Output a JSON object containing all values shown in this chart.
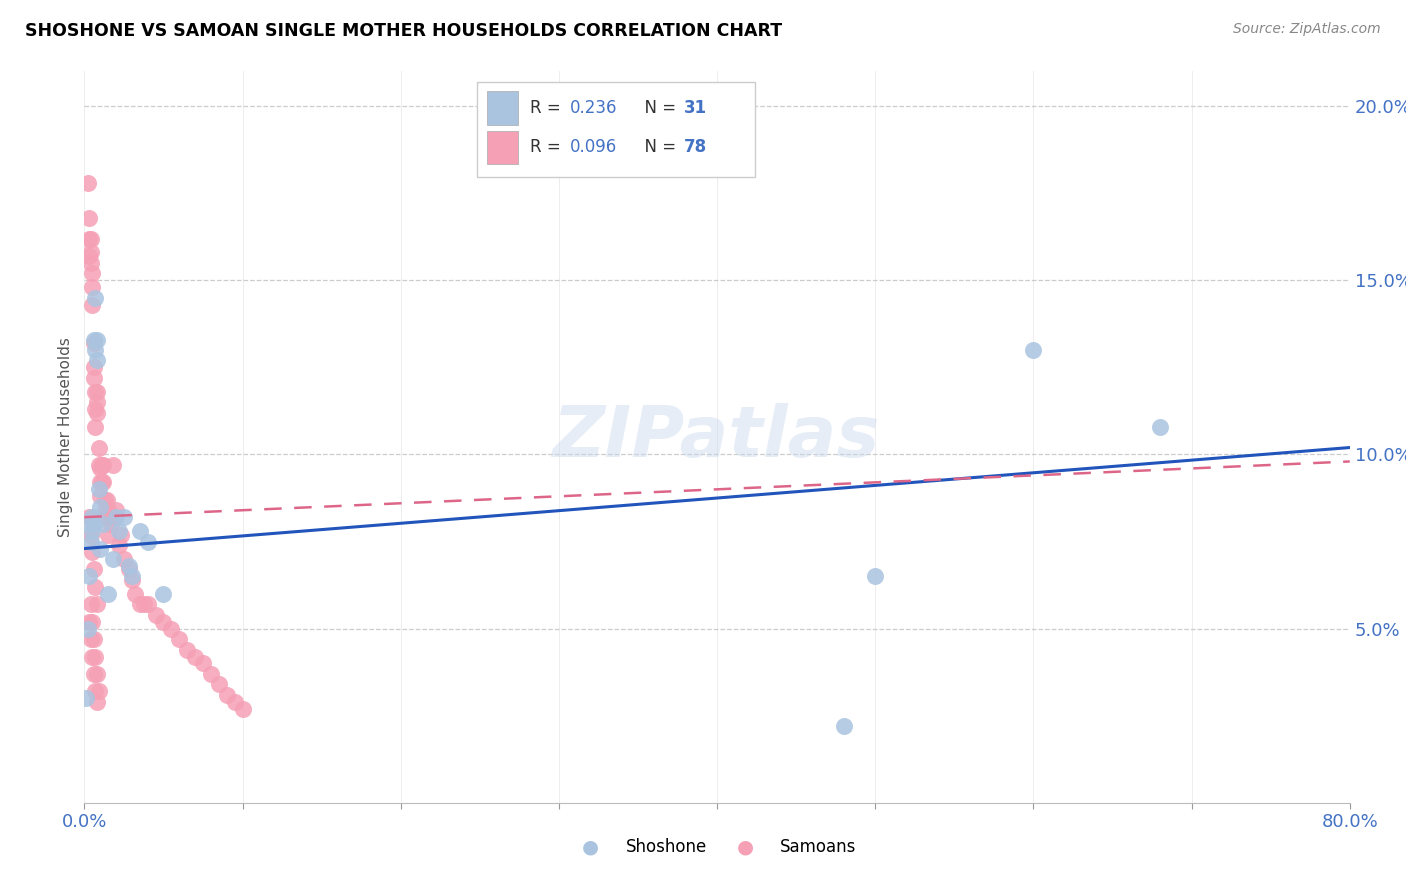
{
  "title": "SHOSHONE VS SAMOAN SINGLE MOTHER HOUSEHOLDS CORRELATION CHART",
  "source": "Source: ZipAtlas.com",
  "ylabel": "Single Mother Households",
  "shoshone_color": "#aac4e0",
  "samoan_color": "#f5a0b5",
  "shoshone_line_color": "#2255bb",
  "samoan_line_color": "#dd6688",
  "watermark": "ZIPatlas",
  "shoshone_r": "0.236",
  "shoshone_n": "31",
  "samoan_r": "0.096",
  "samoan_n": "78",
  "shoshone_x": [
    0.001,
    0.002,
    0.003,
    0.004,
    0.004,
    0.005,
    0.005,
    0.006,
    0.006,
    0.007,
    0.007,
    0.008,
    0.008,
    0.009,
    0.01,
    0.01,
    0.012,
    0.015,
    0.018,
    0.02,
    0.022,
    0.025,
    0.028,
    0.03,
    0.035,
    0.04,
    0.05,
    0.5,
    0.6,
    0.68,
    0.48
  ],
  "shoshone_y": [
    0.03,
    0.05,
    0.065,
    0.075,
    0.08,
    0.078,
    0.082,
    0.08,
    0.133,
    0.13,
    0.145,
    0.127,
    0.133,
    0.09,
    0.085,
    0.073,
    0.08,
    0.06,
    0.07,
    0.082,
    0.078,
    0.082,
    0.068,
    0.065,
    0.078,
    0.075,
    0.06,
    0.065,
    0.13,
    0.108,
    0.022
  ],
  "samoan_x": [
    0.002,
    0.003,
    0.003,
    0.003,
    0.004,
    0.004,
    0.004,
    0.005,
    0.005,
    0.005,
    0.006,
    0.006,
    0.006,
    0.007,
    0.007,
    0.007,
    0.008,
    0.008,
    0.008,
    0.009,
    0.009,
    0.01,
    0.01,
    0.01,
    0.011,
    0.011,
    0.012,
    0.012,
    0.013,
    0.013,
    0.014,
    0.014,
    0.015,
    0.015,
    0.016,
    0.017,
    0.018,
    0.019,
    0.02,
    0.022,
    0.023,
    0.025,
    0.028,
    0.03,
    0.032,
    0.035,
    0.038,
    0.04,
    0.045,
    0.05,
    0.055,
    0.06,
    0.065,
    0.07,
    0.075,
    0.08,
    0.085,
    0.09,
    0.095,
    0.1,
    0.003,
    0.004,
    0.005,
    0.006,
    0.007,
    0.008,
    0.003,
    0.004,
    0.005,
    0.006,
    0.007,
    0.008,
    0.004,
    0.005,
    0.006,
    0.007,
    0.008,
    0.009
  ],
  "samoan_y": [
    0.178,
    0.157,
    0.162,
    0.168,
    0.155,
    0.162,
    0.158,
    0.148,
    0.152,
    0.143,
    0.132,
    0.125,
    0.122,
    0.118,
    0.113,
    0.108,
    0.112,
    0.118,
    0.115,
    0.102,
    0.097,
    0.092,
    0.088,
    0.096,
    0.097,
    0.092,
    0.092,
    0.097,
    0.087,
    0.084,
    0.082,
    0.087,
    0.084,
    0.077,
    0.082,
    0.08,
    0.097,
    0.082,
    0.084,
    0.074,
    0.077,
    0.07,
    0.067,
    0.064,
    0.06,
    0.057,
    0.057,
    0.057,
    0.054,
    0.052,
    0.05,
    0.047,
    0.044,
    0.042,
    0.04,
    0.037,
    0.034,
    0.031,
    0.029,
    0.027,
    0.052,
    0.047,
    0.042,
    0.037,
    0.032,
    0.029,
    0.082,
    0.077,
    0.072,
    0.067,
    0.062,
    0.057,
    0.057,
    0.052,
    0.047,
    0.042,
    0.037,
    0.032
  ],
  "sh_line_x0": 0.0,
  "sh_line_x1": 0.8,
  "sh_line_y0": 0.073,
  "sh_line_y1": 0.102,
  "sa_line_x0": 0.0,
  "sa_line_x1": 0.8,
  "sa_line_y0": 0.082,
  "sa_line_y1": 0.098,
  "xlim": [
    0.0,
    0.8
  ],
  "ylim": [
    0.0,
    0.21
  ],
  "xticks": [
    0.0,
    0.1,
    0.2,
    0.3,
    0.4,
    0.5,
    0.6,
    0.7,
    0.8
  ],
  "yticks": [
    0.05,
    0.1,
    0.15,
    0.2
  ]
}
